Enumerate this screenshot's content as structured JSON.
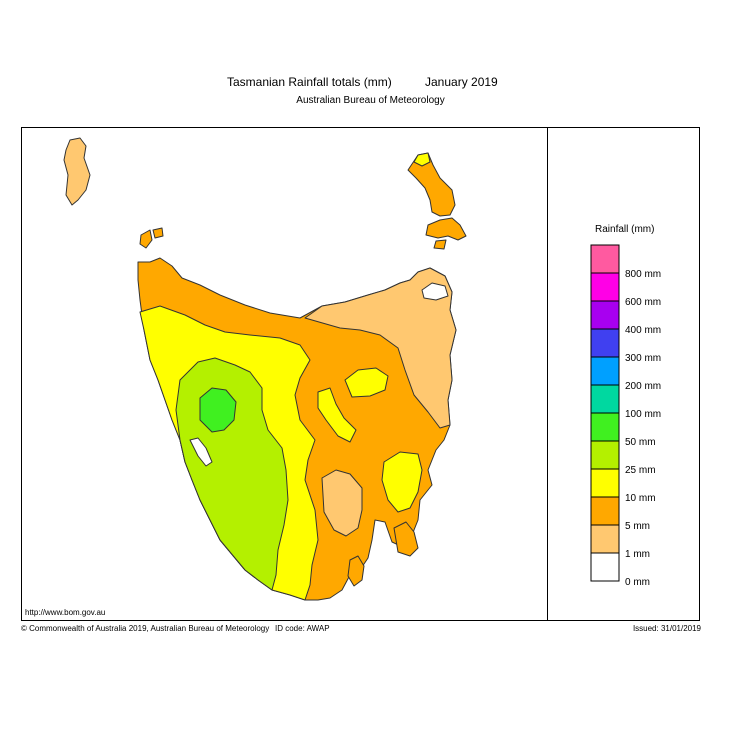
{
  "title": {
    "main": "Tasmanian Rainfall totals (mm)",
    "period": "January 2019",
    "subtitle": "Australian Bureau of Meteorology"
  },
  "map": {
    "region": "Tasmania",
    "url": "http://www.bom.gov.au"
  },
  "legend": {
    "title": "Rainfall (mm)",
    "classes": [
      {
        "label": "800 mm",
        "color": "#ff5aa0"
      },
      {
        "label": "600 mm",
        "color": "#ff00e6"
      },
      {
        "label": "400 mm",
        "color": "#a800f0"
      },
      {
        "label": "300 mm",
        "color": "#4040f0"
      },
      {
        "label": "200 mm",
        "color": "#00a0ff"
      },
      {
        "label": "100 mm",
        "color": "#00d8a0"
      },
      {
        "label": "50 mm",
        "color": "#40f020"
      },
      {
        "label": "25 mm",
        "color": "#b4f000"
      },
      {
        "label": "10 mm",
        "color": "#ffff00"
      },
      {
        "label": "5 mm",
        "color": "#ffa800"
      },
      {
        "label": "1 mm",
        "color": "#ffc870"
      },
      {
        "label": "0 mm",
        "color": "#ffffff"
      }
    ]
  },
  "footer": {
    "copyright": "© Commonwealth of Australia 2019, Australian Bureau of Meteorology",
    "id_code": "ID code: AWAP",
    "issued": "Issued: 31/01/2019"
  }
}
